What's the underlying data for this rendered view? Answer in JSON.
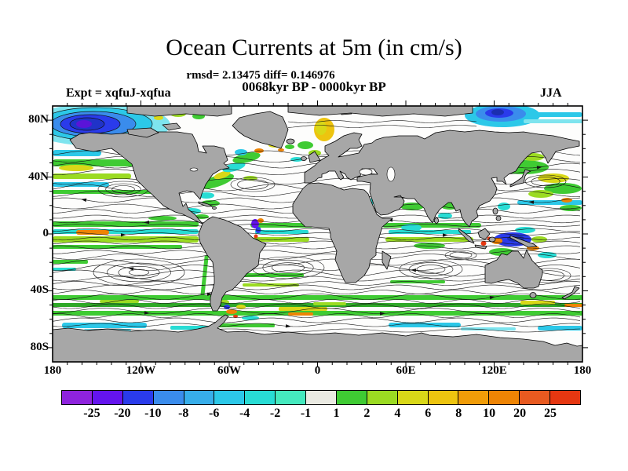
{
  "page": {
    "title": "Ocean Currents at 5m (in cm/s)",
    "stats_line": "rmsd= 2.13475 diff= 0.146976",
    "period_line": "0068kyr BP - 0000kyr BP",
    "experiment_label": "Expt = xqfuJ-xqfua",
    "season_label": "JJA"
  },
  "chart_data": {
    "type": "heatmap",
    "title": "Ocean Currents at 5m (in cm/s)",
    "variable": "ocean current difference at 5m depth",
    "units": "cm/s",
    "depth": "5m",
    "season": "JJA",
    "experiment": "xqfuJ-xqfua",
    "comparison": "0068kyr BP - 0000kyr BP",
    "rmsd": 2.13475,
    "diff": 0.146976,
    "projection": "equirectangular world map",
    "x_axis": {
      "ticks": [
        "180",
        "120W",
        "60W",
        "0",
        "60E",
        "120E",
        "180"
      ],
      "range_deg": [
        -180,
        180
      ],
      "tick_lons": [
        -180,
        -120,
        -60,
        0,
        60,
        120,
        180
      ],
      "minor_tick_step_deg": 10
    },
    "y_axis": {
      "ticks": [
        "80N",
        "40N",
        "0",
        "40S",
        "80S"
      ],
      "range_deg": [
        -90,
        90
      ],
      "tick_lats": [
        80,
        40,
        0,
        -40,
        -80
      ],
      "minor_tick_step_deg": 10
    },
    "colorbar": {
      "tick_labels": [
        "-25",
        "-20",
        "-10",
        "-8",
        "-6",
        "-4",
        "-2",
        "-1",
        "1",
        "2",
        "4",
        "6",
        "8",
        "10",
        "20",
        "25"
      ],
      "levels": [
        -25,
        -20,
        -10,
        -8,
        -6,
        -4,
        -2,
        -1,
        1,
        2,
        4,
        6,
        8,
        10,
        20,
        25
      ],
      "colors": [
        "#8E23DD",
        "#6414EE",
        "#2A3BEB",
        "#3A8CEC",
        "#37AEEA",
        "#2CC8E8",
        "#28DCD4",
        "#45E9BE",
        "#EAEAE2",
        "#3FCB33",
        "#9BDB22",
        "#D9D818",
        "#EDC40F",
        "#F09C08",
        "#EE8404",
        "#E85A20",
        "#E63711"
      ]
    },
    "land_color": "#A7A7A7",
    "ocean_color": "#FDFDFC",
    "features": [
      "black streamline contours with arrowheads over the oceans",
      "anomaly shading along equatorial currents in Pacific, Atlantic and Indian oceans",
      "strong shading along the Antarctic Circumpolar Current",
      "blue gyre anomaly in western Arctic and north of eastern Siberia",
      "intense mixed anomalies around Indonesia and western boundary currents"
    ]
  }
}
